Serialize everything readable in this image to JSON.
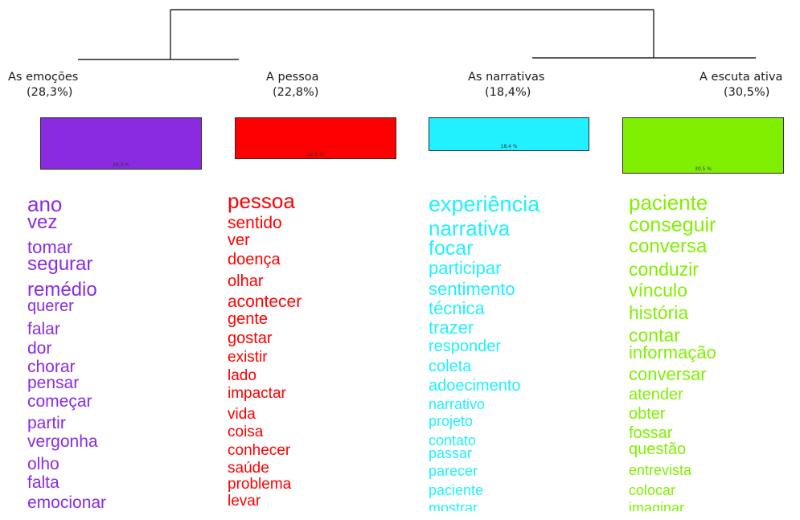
{
  "classes": [
    {
      "label": "As emoções",
      "percent_label": "(28,3%)",
      "bar_text": "28.3 %",
      "share": 28.3,
      "color": "#8a2be2",
      "words": [
        "ano",
        "vez",
        "tomar",
        "segurar",
        "remédio",
        "querer",
        "falar",
        "dor",
        "chorar",
        "pensar",
        "começar",
        "partir",
        "vergonha",
        "olho",
        "falta",
        "emocionar"
      ]
    },
    {
      "label": "A pessoa",
      "percent_label": "(22,8%)",
      "bar_text": "22.8 %",
      "share": 22.8,
      "color": "#ff0000",
      "words": [
        "pessoa",
        "sentido",
        "ver",
        "doença",
        "olhar",
        "acontecer",
        "gente",
        "gostar",
        "existir",
        "lado",
        "impactar",
        "vida",
        "coisa",
        "conhecer",
        "saúde",
        "problema",
        "levar"
      ]
    },
    {
      "label": "As narrativas",
      "percent_label": "(18,4%)",
      "bar_text": "18.4 %",
      "share": 18.4,
      "color": "#20f0ff",
      "words": [
        "experiência",
        "narrativa",
        "focar",
        "participar",
        "sentimento",
        "técnica",
        "trazer",
        "responder",
        "coleta",
        "adoecimento",
        "narrativo",
        "projeto",
        "contato",
        "passar",
        "parecer",
        "paciente",
        "mostrar"
      ]
    },
    {
      "label": "A escuta ativa",
      "percent_label": "(30,5%)",
      "bar_text": "30.5 %",
      "share": 30.5,
      "color": "#80f000",
      "words": [
        "paciente",
        "conseguir",
        "conversa",
        "conduzir",
        "vínculo",
        "história",
        "contar",
        "informação",
        "conversar",
        "atender",
        "obter",
        "fossar",
        "questão",
        "entrevista",
        "colocar",
        "imaginar"
      ]
    }
  ]
}
